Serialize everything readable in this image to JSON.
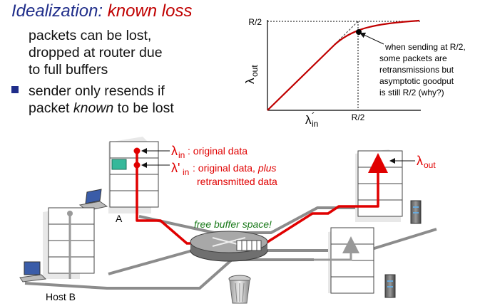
{
  "title": {
    "part1": "Idealization:",
    "part2": "known loss"
  },
  "text": {
    "line1": "packets can be lost,",
    "line2": "dropped at router due",
    "line3": "to full buffers",
    "bullet_pre": "sender only resends if",
    "bullet_mid": "packet ",
    "bullet_em": "known",
    "bullet_post": " to be lost"
  },
  "graph": {
    "ylabel": "λ",
    "ylabel_sub": "out",
    "xlabel": "λ",
    "xlabel_sub": "in",
    "xlabel_prime": "´",
    "y_tick": "R/2",
    "x_tick": "R/2",
    "annotation": [
      "when sending at R/2,",
      "some packets are",
      "retransmissions but",
      "asymptotic goodput",
      "is still R/2  (why?)"
    ]
  },
  "network": {
    "lambda_in_label": "λ",
    "lambda_in_sub": "in",
    "lambda_in_text": ": original data",
    "lambda_prime_label": "λ'",
    "lambda_prime_sub": "in",
    "lambda_prime_text": ": original data, ",
    "lambda_prime_em": "plus",
    "lambda_prime_text2": "retransmitted data",
    "lambda_out_label": "λ",
    "lambda_out_sub": "out",
    "free_buffer": "free buffer space!",
    "host_a": "A",
    "host_b": "Host B"
  },
  "colors": {
    "accent_red": "#e00000",
    "title_blue": "#1f2d8a",
    "green_text": "#1a7a1a",
    "link_gray": "#9a9a9a"
  }
}
